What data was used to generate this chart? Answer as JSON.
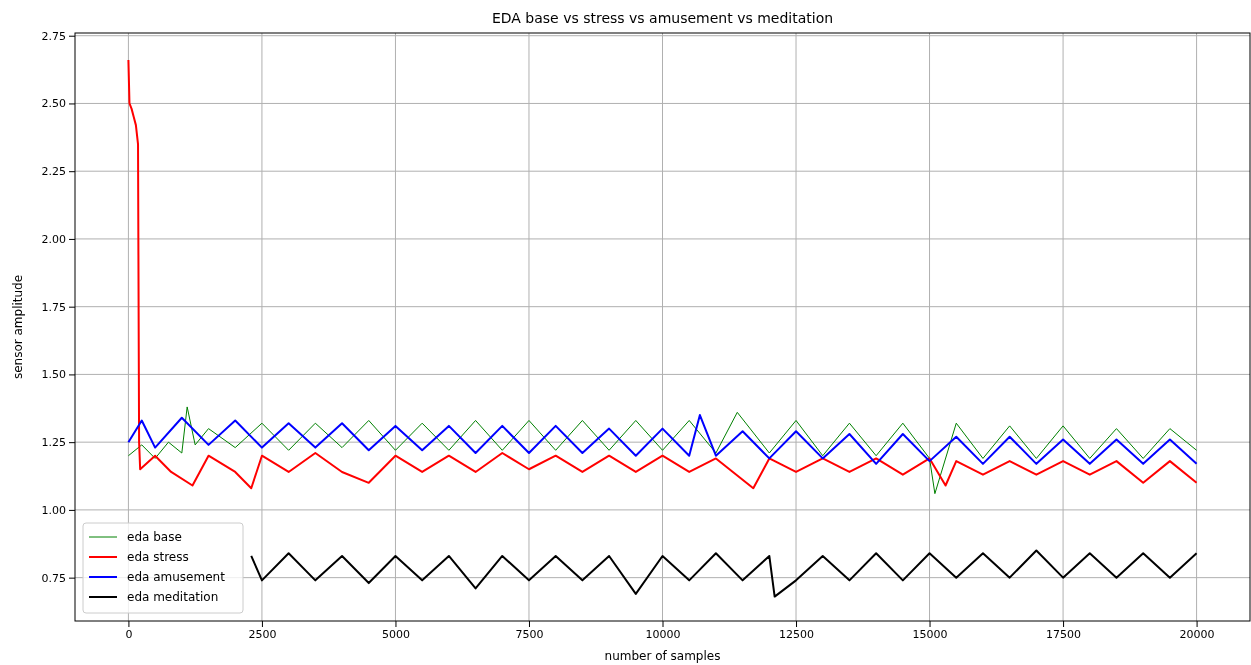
{
  "chart_data": {
    "type": "line",
    "title": "EDA base vs stress vs amusement vs meditation",
    "xlabel": "number of samples",
    "ylabel": "sensor amplitude",
    "xlim": [
      -1000,
      21000
    ],
    "xticks": [
      0,
      2500,
      5000,
      7500,
      10000,
      12500,
      15000,
      17500,
      20000
    ],
    "ylim": [
      0.59,
      2.76
    ],
    "yticks": [
      {
        "value": 0.75,
        "label": "0.75"
      },
      {
        "value": 1.0,
        "label": "1.00"
      },
      {
        "value": 1.25,
        "label": "1.25"
      },
      {
        "value": 1.5,
        "label": "1.50"
      },
      {
        "value": 1.75,
        "label": "1.75"
      },
      {
        "value": 2.0,
        "label": "2.00"
      },
      {
        "value": 2.25,
        "label": "2.25"
      },
      {
        "value": 2.5,
        "label": "2.50"
      },
      {
        "value": 2.75,
        "label": "2.75"
      }
    ],
    "grid": true,
    "legend": "bottom left",
    "series": [
      {
        "name": "eda base",
        "color": "#008000",
        "x": [
          0,
          250,
          500,
          750,
          1000,
          1100,
          1250,
          1500,
          2000,
          2500,
          3000,
          3500,
          4000,
          4500,
          5000,
          5500,
          6000,
          6500,
          7000,
          7500,
          8000,
          8500,
          9000,
          9500,
          10000,
          10500,
          11000,
          11400,
          12000,
          12500,
          13000,
          13500,
          14000,
          14500,
          15000,
          15100,
          15500,
          16000,
          16500,
          17000,
          17500,
          18000,
          18500,
          19000,
          19500,
          20000
        ],
        "values": [
          1.2,
          1.24,
          1.19,
          1.25,
          1.21,
          1.38,
          1.24,
          1.3,
          1.23,
          1.32,
          1.22,
          1.32,
          1.23,
          1.33,
          1.22,
          1.32,
          1.22,
          1.33,
          1.22,
          1.33,
          1.22,
          1.33,
          1.22,
          1.33,
          1.22,
          1.33,
          1.21,
          1.36,
          1.21,
          1.33,
          1.2,
          1.32,
          1.2,
          1.32,
          1.19,
          1.06,
          1.32,
          1.19,
          1.31,
          1.19,
          1.31,
          1.19,
          1.3,
          1.19,
          1.3,
          1.22
        ]
      },
      {
        "name": "eda stress",
        "color": "#ff0000",
        "x": [
          0,
          20,
          60,
          100,
          140,
          180,
          200,
          220,
          500,
          800,
          1200,
          1500,
          2000,
          2300,
          2500,
          3000,
          3500,
          4000,
          4500,
          5000,
          5500,
          6000,
          6500,
          7000,
          7500,
          8000,
          8500,
          9000,
          9500,
          10000,
          10500,
          11000,
          11700,
          12000,
          12500,
          13000,
          13500,
          14000,
          14500,
          15000,
          15300,
          15500,
          16000,
          16500,
          17000,
          17500,
          18000,
          18500,
          19000,
          19500,
          20000
        ],
        "values": [
          2.66,
          2.5,
          2.48,
          2.45,
          2.42,
          2.35,
          1.25,
          1.15,
          1.2,
          1.14,
          1.09,
          1.2,
          1.14,
          1.08,
          1.2,
          1.14,
          1.21,
          1.14,
          1.1,
          1.2,
          1.14,
          1.2,
          1.14,
          1.21,
          1.15,
          1.2,
          1.14,
          1.2,
          1.14,
          1.2,
          1.14,
          1.19,
          1.08,
          1.19,
          1.14,
          1.19,
          1.14,
          1.19,
          1.13,
          1.19,
          1.09,
          1.18,
          1.13,
          1.18,
          1.13,
          1.18,
          1.13,
          1.18,
          1.1,
          1.18,
          1.1
        ]
      },
      {
        "name": "eda amusement",
        "color": "#0000ff",
        "x": [
          0,
          250,
          500,
          1000,
          1500,
          2000,
          2500,
          3000,
          3500,
          4000,
          4500,
          5000,
          5500,
          6000,
          6500,
          7000,
          7500,
          8000,
          8500,
          9000,
          9500,
          10000,
          10500,
          10700,
          11000,
          11500,
          12000,
          12500,
          13000,
          13500,
          14000,
          14500,
          15000,
          15500,
          16000,
          16500,
          17000,
          17500,
          18000,
          18500,
          19000,
          19500,
          20000
        ],
        "values": [
          1.25,
          1.33,
          1.23,
          1.34,
          1.24,
          1.33,
          1.23,
          1.32,
          1.23,
          1.32,
          1.22,
          1.31,
          1.22,
          1.31,
          1.21,
          1.31,
          1.21,
          1.31,
          1.21,
          1.3,
          1.2,
          1.3,
          1.2,
          1.35,
          1.2,
          1.29,
          1.19,
          1.29,
          1.19,
          1.28,
          1.17,
          1.28,
          1.18,
          1.27,
          1.17,
          1.27,
          1.17,
          1.26,
          1.17,
          1.26,
          1.17,
          1.26,
          1.17
        ]
      },
      {
        "name": "eda meditation",
        "color": "#000000",
        "x": [
          2300,
          2500,
          3000,
          3500,
          4000,
          4500,
          5000,
          5500,
          6000,
          6500,
          7000,
          7500,
          8000,
          8500,
          9000,
          9500,
          10000,
          10500,
          11000,
          11500,
          12000,
          12100,
          12500,
          13000,
          13500,
          14000,
          14500,
          15000,
          15500,
          16000,
          16500,
          17000,
          17500,
          18000,
          18500,
          19000,
          19500,
          20000
        ],
        "values": [
          0.83,
          0.74,
          0.84,
          0.74,
          0.83,
          0.73,
          0.83,
          0.74,
          0.83,
          0.71,
          0.83,
          0.74,
          0.83,
          0.74,
          0.83,
          0.69,
          0.83,
          0.74,
          0.84,
          0.74,
          0.83,
          0.68,
          0.74,
          0.83,
          0.74,
          0.84,
          0.74,
          0.84,
          0.75,
          0.84,
          0.75,
          0.85,
          0.75,
          0.84,
          0.75,
          0.84,
          0.75,
          0.84
        ]
      }
    ]
  }
}
